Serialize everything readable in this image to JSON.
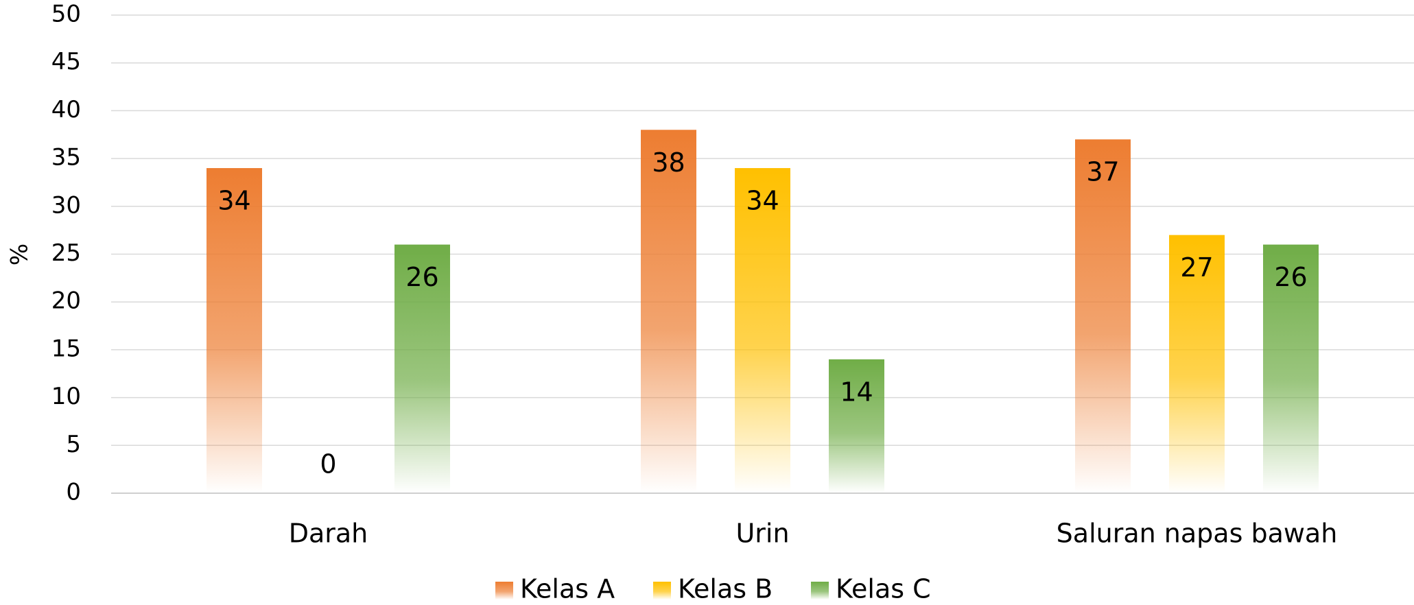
{
  "chart_data": {
    "type": "bar",
    "y_label": "%",
    "categories": [
      "Darah",
      "Urin",
      "Saluran napas bawah"
    ],
    "series": [
      {
        "name": "Kelas A",
        "color": "#ED7D31",
        "values": [
          34,
          38,
          37
        ]
      },
      {
        "name": "Kelas B",
        "color": "#FFC000",
        "values": [
          0,
          34,
          27
        ]
      },
      {
        "name": "Kelas C",
        "color": "#70AD47",
        "values": [
          26,
          14,
          26
        ]
      }
    ],
    "ylim": [
      0,
      50
    ],
    "yticks": [
      0,
      5,
      10,
      15,
      20,
      25,
      30,
      35,
      40,
      45,
      50
    ],
    "grid": true,
    "legend": "bottom"
  }
}
